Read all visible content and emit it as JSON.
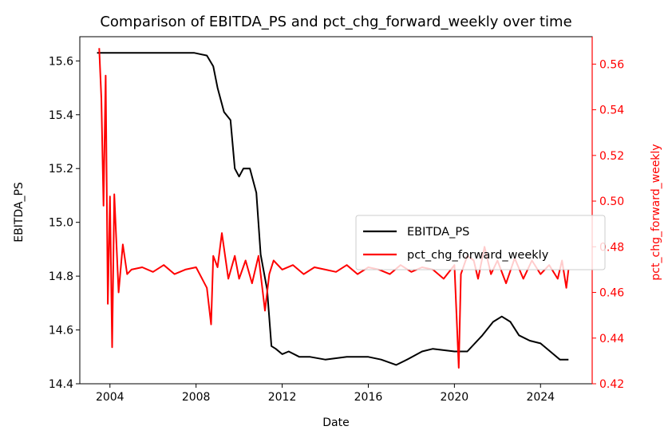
{
  "chart_data": {
    "type": "line",
    "title": "Comparison of EBITDA_PS and pct_chg_forward_weekly over time",
    "xlabel": "Date",
    "ylabel_left": "EBITDA_PS",
    "ylabel_right": "pct_chg_forward_weekly",
    "xlim": [
      2002.6,
      2026.4
    ],
    "ylim_left": [
      14.4,
      15.69
    ],
    "ylim_right": [
      0.42,
      0.572
    ],
    "x_ticks": [
      "2004",
      "2008",
      "2012",
      "2016",
      "2020",
      "2024"
    ],
    "y_ticks_left": [
      "14.4",
      "14.6",
      "14.8",
      "15.0",
      "15.2",
      "15.4",
      "15.6"
    ],
    "y_ticks_right": [
      "0.42",
      "0.44",
      "0.46",
      "0.48",
      "0.50",
      "0.52",
      "0.54",
      "0.56"
    ],
    "grid": false,
    "legend_position": "center-right",
    "colors": {
      "EBITDA_PS": "#000000",
      "pct_chg_forward_weekly": "#ff0000"
    },
    "series": [
      {
        "name": "EBITDA_PS",
        "axis": "left",
        "x": [
          2003.4,
          2007.9,
          2008.5,
          2008.8,
          2009.0,
          2009.3,
          2009.4,
          2009.6,
          2009.8,
          2010.0,
          2010.2,
          2010.5,
          2010.8,
          2011.0,
          2011.3,
          2011.5,
          2011.7,
          2012.0,
          2012.3,
          2012.8,
          2013.3,
          2014.0,
          2015.0,
          2016.0,
          2016.6,
          2017.3,
          2017.8,
          2018.5,
          2019.0,
          2020.0,
          2020.6,
          2021.3,
          2021.8,
          2022.2,
          2022.6,
          2023.0,
          2023.5,
          2024.0,
          2024.6,
          2024.9,
          2025.3
        ],
        "values": [
          15.63,
          15.63,
          15.62,
          15.58,
          15.5,
          15.41,
          15.4,
          15.38,
          15.2,
          15.17,
          15.2,
          15.2,
          15.11,
          14.88,
          14.75,
          14.54,
          14.53,
          14.51,
          14.52,
          14.5,
          14.5,
          14.49,
          14.5,
          14.5,
          14.49,
          14.47,
          14.49,
          14.52,
          14.53,
          14.52,
          14.52,
          14.58,
          14.63,
          14.65,
          14.63,
          14.58,
          14.56,
          14.55,
          14.51,
          14.49,
          14.49
        ]
      },
      {
        "name": "pct_chg_forward_weekly",
        "axis": "right",
        "x": [
          2003.5,
          2003.6,
          2003.7,
          2003.8,
          2003.9,
          2004.0,
          2004.1,
          2004.2,
          2004.4,
          2004.6,
          2004.8,
          2005.0,
          2005.5,
          2006.0,
          2006.5,
          2007.0,
          2007.5,
          2008.0,
          2008.5,
          2008.7,
          2008.8,
          2009.0,
          2009.2,
          2009.5,
          2009.8,
          2010.0,
          2010.3,
          2010.6,
          2010.9,
          2011.2,
          2011.4,
          2011.6,
          2012.0,
          2012.5,
          2013.0,
          2013.5,
          2014.0,
          2014.5,
          2015.0,
          2015.5,
          2016.0,
          2016.5,
          2017.0,
          2017.5,
          2018.0,
          2018.5,
          2019.0,
          2019.5,
          2020.0,
          2020.2,
          2020.3,
          2020.6,
          2020.9,
          2021.1,
          2021.4,
          2021.7,
          2022.0,
          2022.4,
          2022.8,
          2023.2,
          2023.6,
          2024.0,
          2024.4,
          2024.8,
          2025.0,
          2025.2,
          2025.3
        ],
        "values": [
          0.567,
          0.545,
          0.498,
          0.555,
          0.455,
          0.502,
          0.436,
          0.503,
          0.46,
          0.481,
          0.468,
          0.47,
          0.471,
          0.469,
          0.472,
          0.468,
          0.47,
          0.471,
          0.462,
          0.446,
          0.476,
          0.471,
          0.486,
          0.466,
          0.476,
          0.466,
          0.474,
          0.464,
          0.476,
          0.452,
          0.468,
          0.474,
          0.47,
          0.472,
          0.468,
          0.471,
          0.47,
          0.469,
          0.472,
          0.468,
          0.471,
          0.47,
          0.468,
          0.472,
          0.469,
          0.471,
          0.47,
          0.466,
          0.472,
          0.427,
          0.468,
          0.476,
          0.474,
          0.466,
          0.48,
          0.468,
          0.474,
          0.464,
          0.475,
          0.466,
          0.474,
          0.468,
          0.472,
          0.466,
          0.474,
          0.462,
          0.47
        ]
      }
    ]
  }
}
